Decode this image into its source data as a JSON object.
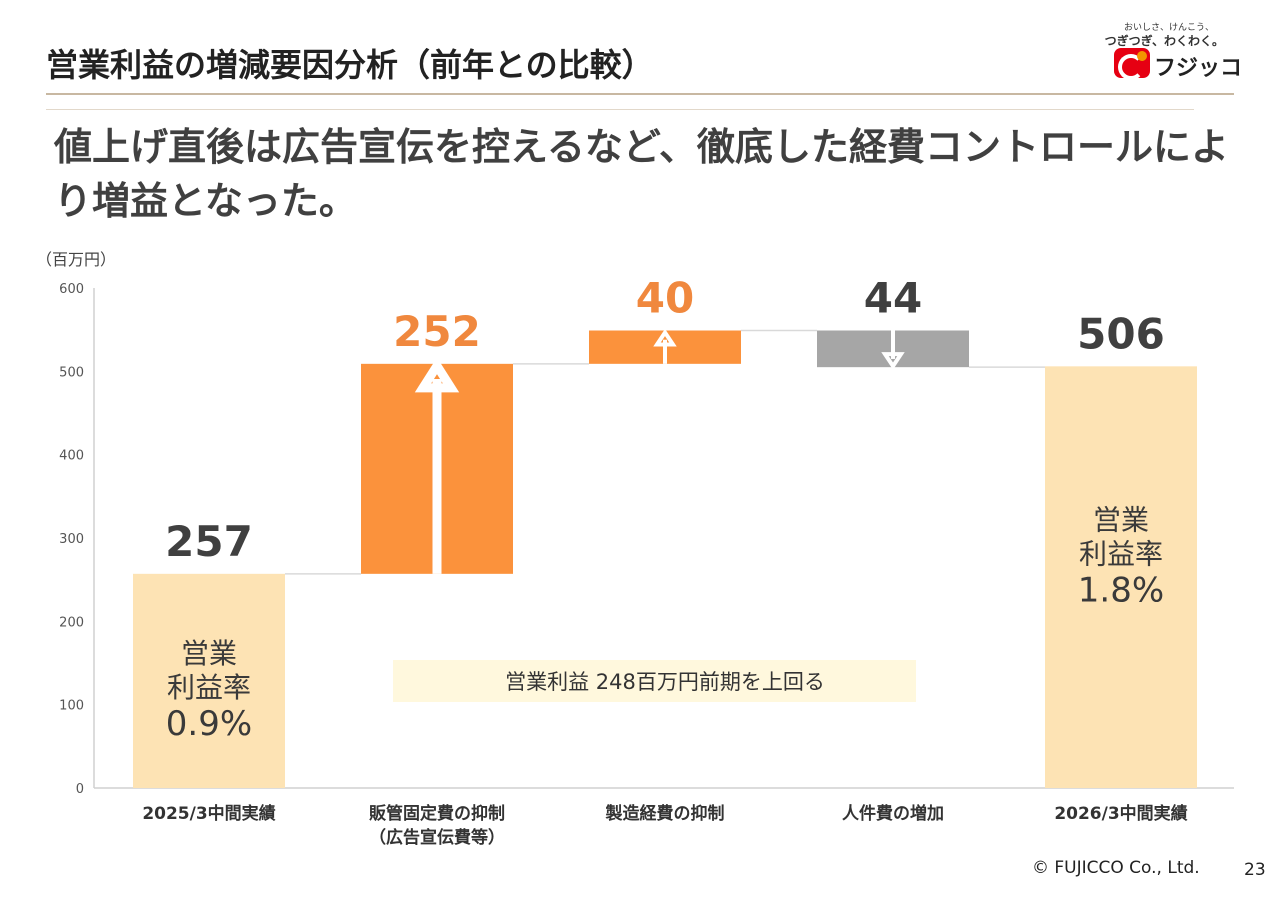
{
  "header": {
    "title": "営業利益の増減要因分析（前年との比較）",
    "logo": {
      "tagline_line1": "おいしさ、けんこう、",
      "tagline_line2": "つぎつぎ、わくわく。",
      "name": "フジッコ"
    }
  },
  "headline": "値上げ直後は広告宣伝を控えるなど、徹底した経費コントロールにより増益となった。",
  "footer": {
    "copyright": "© FUJICCO Co., Ltd.",
    "page_number": "23"
  },
  "colors": {
    "total_bar": "#fde3b4",
    "increase_bar": "#fb923c",
    "decrease_bar": "#a6a6a6",
    "increase_label": "#f0883e",
    "value_label": "#404040",
    "callout_bg": "#fff8dd"
  },
  "chart_data": {
    "type": "bar",
    "subtype": "waterfall",
    "unit_label": "（百万円）",
    "ylim": [
      0,
      600
    ],
    "yticks": [
      0,
      100,
      200,
      300,
      400,
      500,
      600
    ],
    "grid": false,
    "categories": [
      [
        "2025/3中間実績"
      ],
      [
        "販管固定費の抑制",
        "（広告宣伝費等）"
      ],
      [
        "製造経費の抑制"
      ],
      [
        "人件費の増加"
      ],
      [
        "2026/3中間実績"
      ]
    ],
    "bars": [
      {
        "kind": "total",
        "value": 257,
        "label": "257",
        "inner_text": [
          "営業",
          "利益率",
          "0.9%"
        ]
      },
      {
        "kind": "increase",
        "value": 252,
        "label": "252"
      },
      {
        "kind": "increase",
        "value": 40,
        "label": "40"
      },
      {
        "kind": "decrease",
        "value": 44,
        "label": "44"
      },
      {
        "kind": "total",
        "value": 506,
        "label": "506",
        "inner_text": [
          "営業",
          "利益率",
          "1.8%"
        ]
      }
    ],
    "annotation": "営業利益  248百万円前期を上回る"
  }
}
